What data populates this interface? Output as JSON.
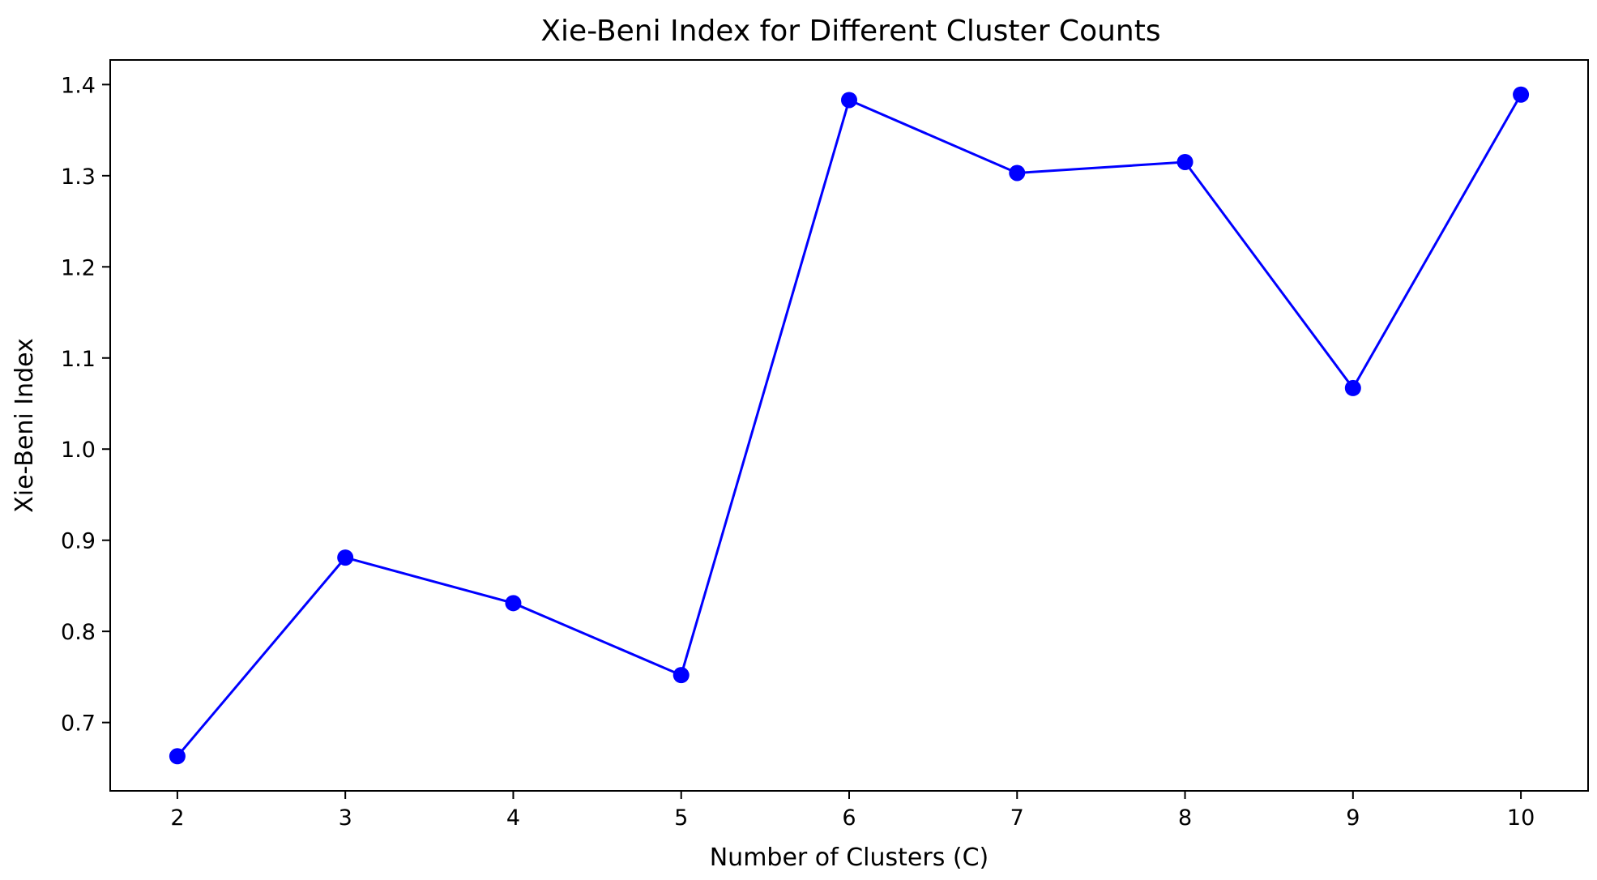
{
  "chart_data": {
    "type": "line",
    "title": "Xie-Beni Index for Different Cluster Counts",
    "xlabel": "Number of Clusters (C)",
    "ylabel": "Xie-Beni Index",
    "x": [
      2,
      3,
      4,
      5,
      6,
      7,
      8,
      9,
      10
    ],
    "y": [
      0.663,
      0.881,
      0.831,
      0.752,
      1.383,
      1.303,
      1.315,
      1.067,
      1.389
    ],
    "xticks": [
      2,
      3,
      4,
      5,
      6,
      7,
      8,
      9,
      10
    ],
    "yticks": [
      0.7,
      0.8,
      0.9,
      1.0,
      1.1,
      1.2,
      1.3,
      1.4
    ],
    "ytick_labels": [
      "0.7",
      "0.8",
      "0.9",
      "1.0",
      "1.1",
      "1.2",
      "1.3",
      "1.4"
    ],
    "xlim": [
      1.6,
      10.4
    ],
    "ylim": [
      0.625,
      1.427
    ],
    "grid": false,
    "marker": "circle",
    "line_color": "#0000ff"
  }
}
